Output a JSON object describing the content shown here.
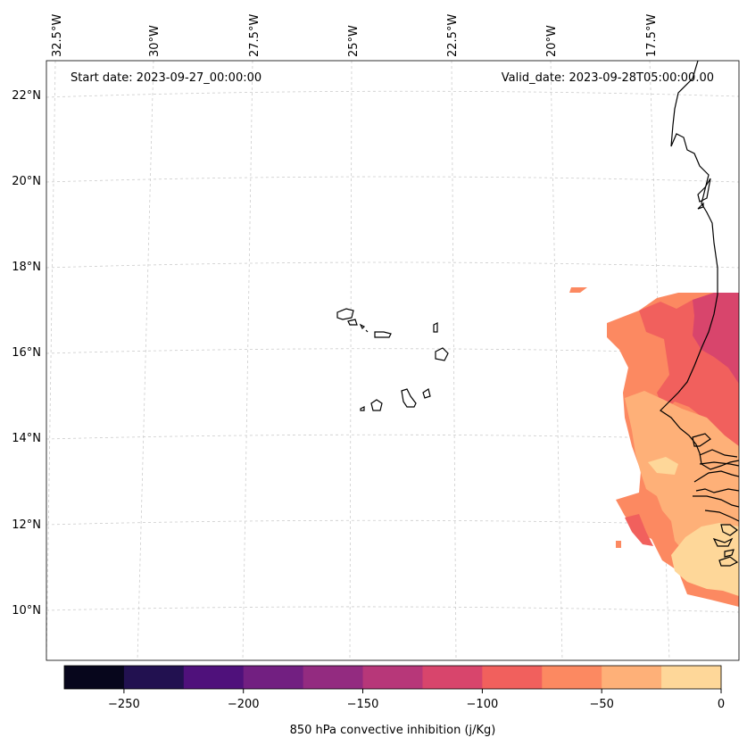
{
  "header": {
    "start_date": "Start date: 2023-09-27_00:00:00",
    "valid_date": "Valid_date: 2023-09-28T05:00:00.00"
  },
  "axes": {
    "longitude_labels": [
      "32.5°W",
      "30°W",
      "27.5°W",
      "25°W",
      "22.5°W",
      "20°W",
      "17.5°W"
    ],
    "latitude_labels": [
      "22°N",
      "20°N",
      "18°N",
      "16°N",
      "14°N",
      "12°N",
      "10°N"
    ],
    "gridlines": true
  },
  "colorbar": {
    "label": "850 hPa convective inhibition (j/Kg)",
    "ticks": [
      "−250",
      "−200",
      "−150",
      "−100",
      "−50",
      "0"
    ],
    "levels": [
      -275,
      -250,
      -225,
      -200,
      -175,
      -150,
      -125,
      -100,
      -75,
      -50,
      -25,
      0
    ],
    "colors": [
      "#07061c",
      "#221150",
      "#4f117b",
      "#721f81",
      "#932b80",
      "#b73779",
      "#d8456c",
      "#f1605d",
      "#fc8961",
      "#feb078",
      "#fed799"
    ],
    "colormap": "magma"
  }
}
